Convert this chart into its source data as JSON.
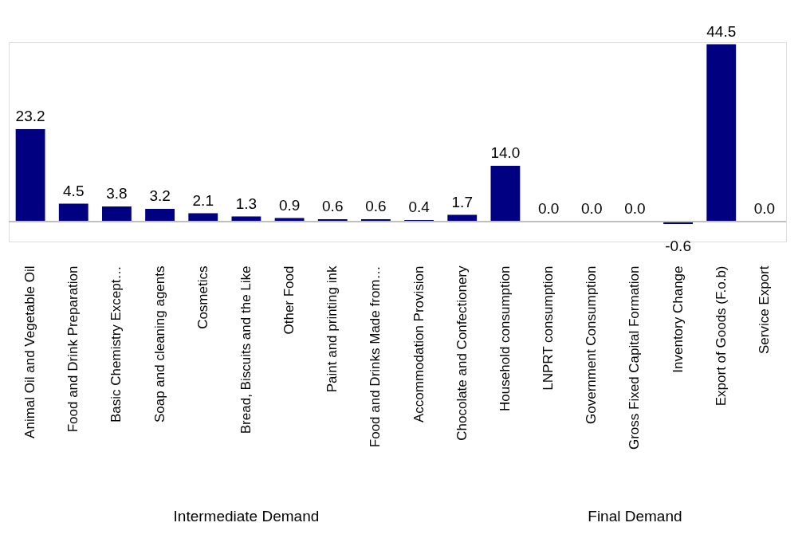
{
  "chart_data": {
    "type": "bar",
    "categories": [
      "Animal Oil and Vegetable Oil",
      "Food and Drink Preparation",
      "Basic Chemistry Except…",
      "Soap and cleaning agents",
      "Cosmetics",
      "Bread, Biscuits and the Like",
      "Other Food",
      "Paint and printing ink",
      "Food and Drinks Made from…",
      "Accommodation Provision",
      "Chocolate and Confectionery",
      "Household consumption",
      "LNPRT consumption",
      "Government Consumption",
      "Gross Fixed Capital Formation",
      "Inventory Change",
      "Export of Goods (F.o.b)",
      "Service Export"
    ],
    "values": [
      23.2,
      4.5,
      3.8,
      3.2,
      2.1,
      1.3,
      0.9,
      0.6,
      0.6,
      0.4,
      1.7,
      14.0,
      0.0,
      0.0,
      0.0,
      -0.6,
      44.5,
      0.0
    ],
    "value_labels": [
      "23.2",
      "4.5",
      "3.8",
      "3.2",
      "2.1",
      "1.3",
      "0.9",
      "0.6",
      "0.6",
      "0.4",
      "1.7",
      "14.0",
      "0.0",
      "0.0",
      "0.0",
      "-0.6",
      "44.5",
      "0.0"
    ],
    "color": "#000080",
    "annotations": [
      "Intermediate Demand",
      "Final Demand"
    ],
    "grid": false
  }
}
